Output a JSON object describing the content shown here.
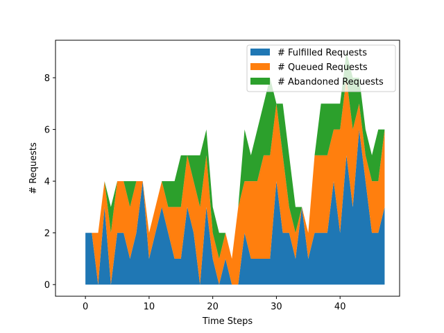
{
  "chart_data": {
    "type": "area",
    "stacked": true,
    "xlabel": "Time Steps",
    "ylabel": "# Requests",
    "xlim": [
      -4.7,
      49.35
    ],
    "ylim": [
      -0.45,
      9.45
    ],
    "xticks": [
      0,
      10,
      20,
      30,
      40
    ],
    "yticks": [
      0,
      2,
      4,
      6,
      8
    ],
    "grid": false,
    "legend_position": "top-right",
    "x": [
      0,
      1,
      2,
      3,
      4,
      5,
      6,
      7,
      8,
      9,
      10,
      11,
      12,
      13,
      14,
      15,
      16,
      17,
      18,
      19,
      20,
      21,
      22,
      23,
      24,
      25,
      26,
      27,
      28,
      29,
      30,
      31,
      32,
      33,
      34,
      35,
      36,
      37,
      38,
      39,
      40,
      41,
      42,
      43,
      44,
      45,
      46,
      47
    ],
    "series": [
      {
        "name": "# Fulfilled Requests",
        "color": "#1f77b4",
        "values": [
          2,
          2,
          0,
          3,
          0,
          2,
          2,
          1,
          2,
          4,
          1,
          2,
          3,
          2,
          1,
          1,
          3,
          2,
          0,
          3,
          1,
          0,
          1,
          0,
          0,
          2,
          1,
          1,
          1,
          1,
          4,
          2,
          2,
          1,
          3,
          1,
          2,
          2,
          2,
          4,
          2,
          5,
          3,
          6,
          4,
          2,
          2,
          3
        ]
      },
      {
        "name": "# Queued Requests",
        "color": "#ff7f0e",
        "values": [
          0,
          0,
          2,
          1,
          2,
          2,
          2,
          2,
          2,
          0,
          1,
          1,
          1,
          1,
          2,
          2,
          2,
          2,
          3,
          2,
          1,
          1,
          1,
          1,
          3,
          2,
          3,
          3,
          4,
          4,
          3,
          3,
          1,
          1,
          0,
          1,
          3,
          3,
          3,
          2,
          4,
          3,
          3,
          1,
          1,
          2,
          2,
          3
        ]
      },
      {
        "name": "# Abandoned Requests",
        "color": "#2ca02c",
        "values": [
          0,
          0,
          0,
          0,
          1,
          0,
          0,
          1,
          0,
          0,
          0,
          0,
          0,
          1,
          1,
          2,
          0,
          1,
          2,
          1,
          1,
          1,
          0,
          0,
          0,
          2,
          1,
          2,
          2,
          3,
          0,
          2,
          2,
          1,
          0,
          0,
          0,
          2,
          2,
          1,
          1,
          1,
          2,
          1,
          1,
          1,
          2,
          0
        ]
      }
    ]
  }
}
